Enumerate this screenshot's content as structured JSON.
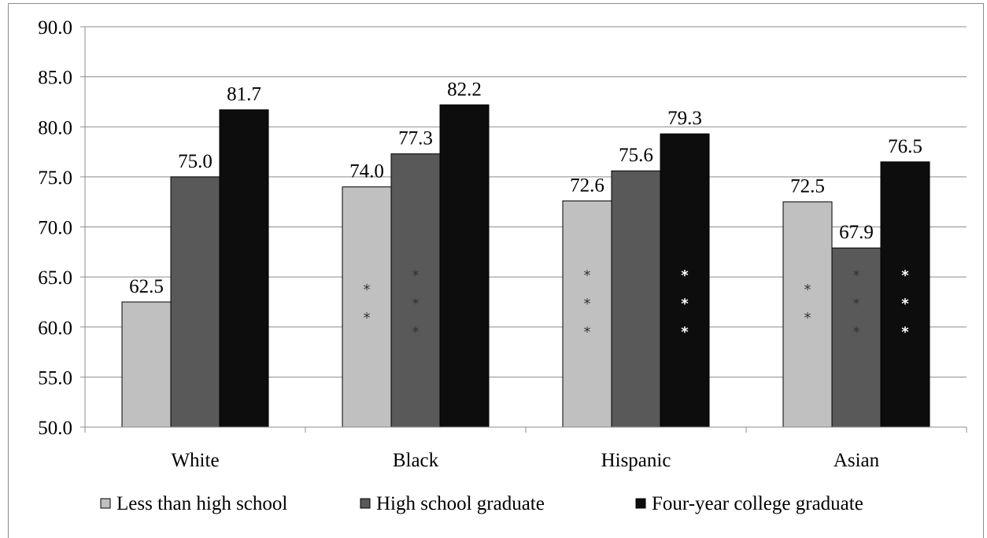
{
  "chart_data": {
    "type": "bar",
    "categories": [
      "White",
      "Black",
      "Hispanic",
      "Asian"
    ],
    "series": [
      {
        "name": "Less than high school",
        "color": "#c0c0c0",
        "values": [
          62.5,
          74.0,
          72.6,
          72.5
        ]
      },
      {
        "name": "High school graduate",
        "color": "#595959",
        "values": [
          75.0,
          77.3,
          75.6,
          67.9
        ]
      },
      {
        "name": "Four-year college graduate",
        "color": "#0d0d0d",
        "values": [
          81.7,
          82.2,
          79.3,
          76.5
        ]
      }
    ],
    "value_labels": [
      [
        "62.5",
        "74.0",
        "72.6",
        "72.5"
      ],
      [
        "75.0",
        "77.3",
        "75.6",
        "67.9"
      ],
      [
        "81.7",
        "82.2",
        "79.3",
        "76.5"
      ]
    ],
    "significance_stars": [
      [
        0,
        2,
        3,
        2
      ],
      [
        0,
        3,
        0,
        3
      ],
      [
        0,
        0,
        3,
        3
      ]
    ],
    "ylim": [
      50.0,
      90.0
    ],
    "yticks": [
      "50.0",
      "55.0",
      "60.0",
      "65.0",
      "70.0",
      "75.0",
      "80.0",
      "85.0",
      "90.0"
    ],
    "grid": true,
    "legend_position": "bottom",
    "title": "",
    "xlabel": "",
    "ylabel": ""
  }
}
